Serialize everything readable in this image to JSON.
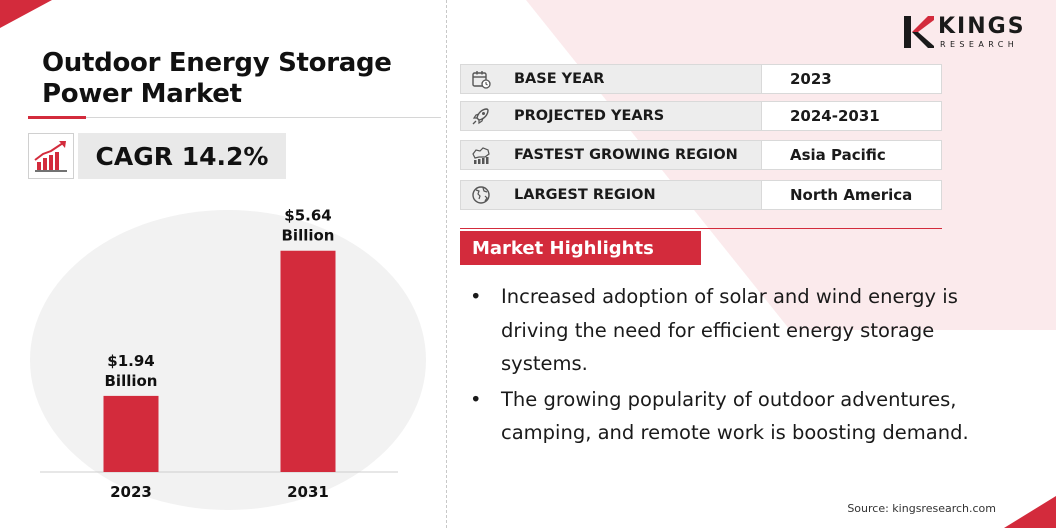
{
  "title": "Outdoor Energy Storage Power Market",
  "cagr": "CAGR 14.2%",
  "chart_data": {
    "type": "bar",
    "categories": [
      "2023",
      "2031"
    ],
    "values": [
      1.94,
      5.64
    ],
    "value_labels": [
      "$1.94",
      "$5.64"
    ],
    "unit_label": "Billion",
    "title": "",
    "xlabel": "",
    "ylabel": "",
    "ylim": [
      0,
      6.5
    ],
    "grid": false,
    "bar_color": "#d32b3c"
  },
  "info_rows": [
    {
      "icon": "calendar-clock-icon",
      "label": "BASE YEAR",
      "value": "2023"
    },
    {
      "icon": "rocket-icon",
      "label": "PROJECTED YEARS",
      "value": "2024-2031"
    },
    {
      "icon": "region-growth-icon",
      "label": "FASTEST GROWING REGION",
      "value": "Asia Pacific"
    },
    {
      "icon": "globe-icon",
      "label": "LARGEST REGION",
      "value": "North America"
    }
  ],
  "highlights": {
    "heading": "Market Highlights",
    "items": [
      "Increased adoption of solar and wind energy is driving the need for  efficient energy storage systems.",
      "The growing popularity of outdoor adventures, camping, and remote work is boosting demand."
    ]
  },
  "logo": {
    "name": "KINGS",
    "sub": "RESEARCH"
  },
  "source": "Source: kingsresearch.com",
  "colors": {
    "accent": "#d32b3c",
    "panel_grey": "#ededed",
    "text": "#1a1a1a"
  }
}
